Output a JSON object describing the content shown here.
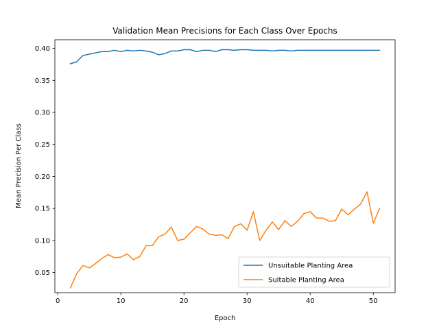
{
  "chart_data": {
    "type": "line",
    "title": "Validation Mean Precisions for Each Class Over Epochs",
    "xlabel": "Epoch",
    "ylabel": "Mean Precision Per Class",
    "xlim": [
      -0.45,
      53.45
    ],
    "ylim": [
      0.0185,
      0.4135
    ],
    "xticks": [
      0,
      10,
      20,
      30,
      40,
      50
    ],
    "yticks": [
      0.05,
      0.1,
      0.15,
      0.2,
      0.25,
      0.3,
      0.35,
      0.4
    ],
    "grid": false,
    "legend_position": "lower-right",
    "x": [
      2,
      3,
      4,
      5,
      6,
      7,
      8,
      9,
      10,
      11,
      12,
      13,
      14,
      15,
      16,
      17,
      18,
      19,
      20,
      21,
      22,
      23,
      24,
      25,
      26,
      27,
      28,
      29,
      30,
      31,
      32,
      33,
      34,
      35,
      36,
      37,
      38,
      39,
      40,
      41,
      42,
      43,
      44,
      45,
      46,
      47,
      48,
      49,
      50,
      51
    ],
    "series": [
      {
        "name": "Unsuitable Planting Area",
        "color": "#1f77b4",
        "values": [
          0.376,
          0.379,
          0.389,
          0.391,
          0.393,
          0.395,
          0.395,
          0.397,
          0.395,
          0.397,
          0.396,
          0.397,
          0.396,
          0.394,
          0.39,
          0.392,
          0.396,
          0.396,
          0.398,
          0.398,
          0.395,
          0.397,
          0.397,
          0.395,
          0.398,
          0.398,
          0.397,
          0.398,
          0.398,
          0.397,
          0.397,
          0.397,
          0.396,
          0.397,
          0.397,
          0.396,
          0.397,
          0.397,
          0.397,
          0.397,
          0.397,
          0.397,
          0.397,
          0.397,
          0.397,
          0.397,
          0.397,
          0.397,
          0.397,
          0.397
        ]
      },
      {
        "name": "Suitable Planting Area",
        "color": "#ff7f0e",
        "values": [
          0.026,
          0.048,
          0.061,
          0.057,
          0.064,
          0.072,
          0.078,
          0.073,
          0.074,
          0.079,
          0.07,
          0.075,
          0.092,
          0.092,
          0.106,
          0.11,
          0.121,
          0.1,
          0.102,
          0.112,
          0.122,
          0.118,
          0.11,
          0.108,
          0.109,
          0.103,
          0.122,
          0.126,
          0.116,
          0.145,
          0.1,
          0.116,
          0.129,
          0.117,
          0.131,
          0.122,
          0.13,
          0.142,
          0.145,
          0.135,
          0.135,
          0.13,
          0.131,
          0.149,
          0.14,
          0.149,
          0.157,
          0.176,
          0.127,
          0.15
        ]
      }
    ]
  }
}
